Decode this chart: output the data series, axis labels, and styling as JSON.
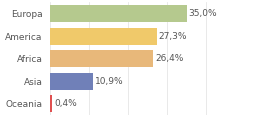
{
  "categories": [
    "Europa",
    "America",
    "Africa",
    "Asia",
    "Oceania"
  ],
  "values": [
    35.0,
    27.3,
    26.4,
    10.9,
    0.4
  ],
  "labels": [
    "35,0%",
    "27,3%",
    "26,4%",
    "10,9%",
    "0,4%"
  ],
  "colors": [
    "#b5c98e",
    "#f0c96a",
    "#e8b87a",
    "#7080b8",
    "#e05050"
  ],
  "background_color": "#ffffff",
  "xlim": [
    0,
    46
  ],
  "label_fontsize": 6.5,
  "tick_fontsize": 6.5
}
